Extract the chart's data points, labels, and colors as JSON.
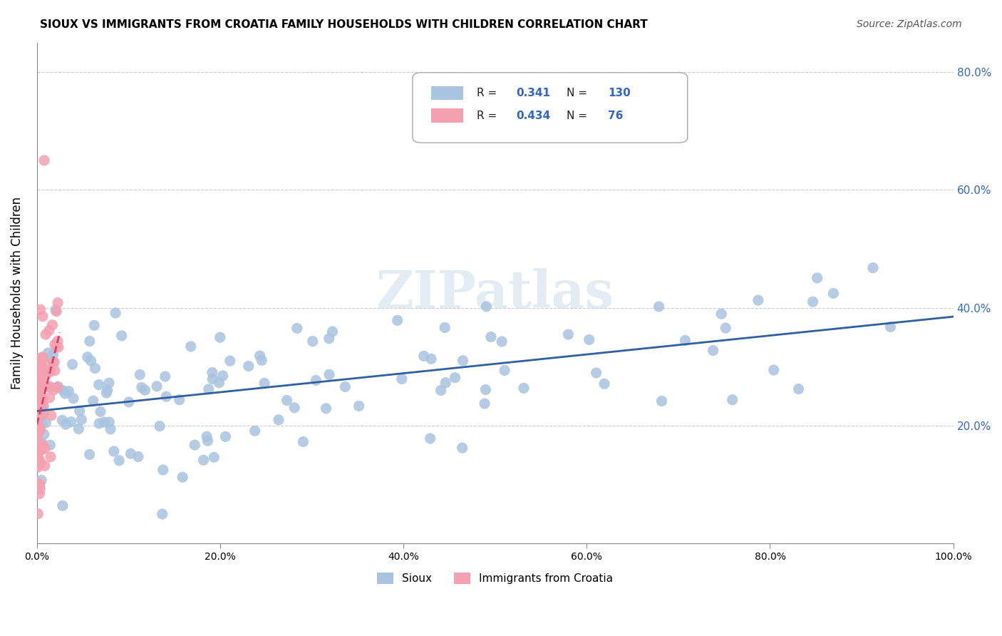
{
  "title": "SIOUX VS IMMIGRANTS FROM CROATIA FAMILY HOUSEHOLDS WITH CHILDREN CORRELATION CHART",
  "source": "Source: ZipAtlas.com",
  "ylabel": "Family Households with Children",
  "legend_bottom": [
    "Sioux",
    "Immigrants from Croatia"
  ],
  "sioux_R": 0.341,
  "sioux_N": 130,
  "croatia_R": 0.434,
  "croatia_N": 76,
  "sioux_color": "#a8c4e0",
  "sioux_line_color": "#3060a0",
  "croatia_color": "#f4a0b0",
  "croatia_line_color": "#e04060",
  "watermark": "ZIPatlas",
  "background_color": "#ffffff",
  "grid_color": "#cccccc"
}
